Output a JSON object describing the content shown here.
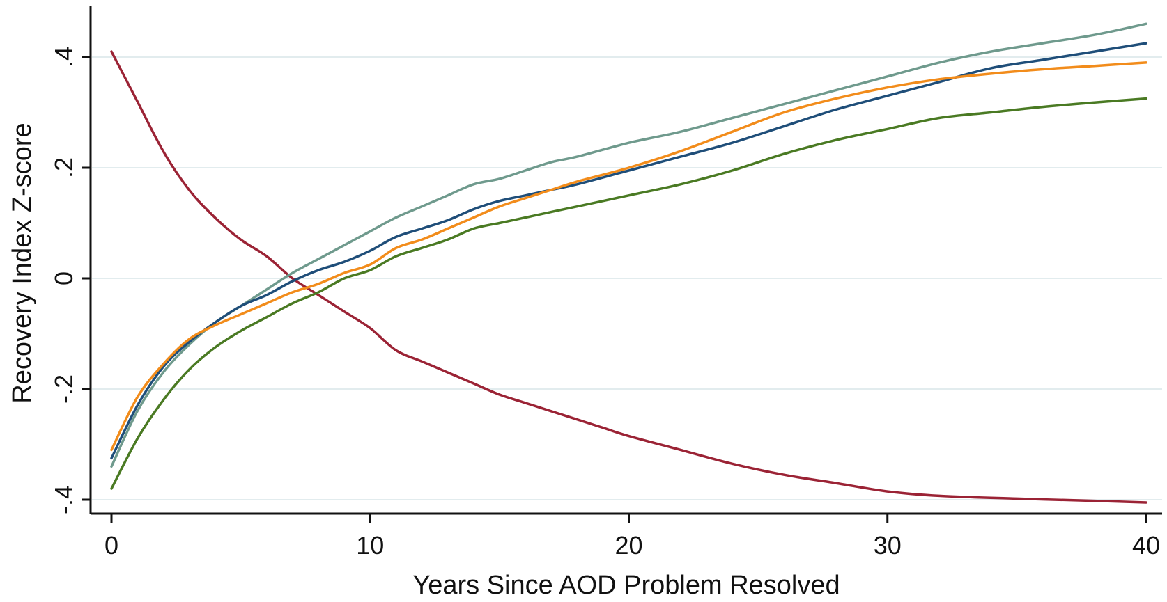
{
  "chart_data": {
    "type": "line",
    "title": "",
    "xlabel": "Years Since AOD Problem Resolved",
    "ylabel": "Recovery Index Z-score",
    "xlim": [
      0,
      40
    ],
    "ylim": [
      -0.4,
      0.4
    ],
    "x_ticks": [
      0,
      10,
      20,
      30,
      40
    ],
    "x_tick_labels": [
      "0",
      "10",
      "20",
      "30",
      "40"
    ],
    "y_ticks": [
      -0.4,
      -0.2,
      0,
      0.2,
      0.4
    ],
    "y_tick_labels": [
      "-.4",
      "-.2",
      "0",
      ".2",
      ".4"
    ],
    "grid": true,
    "legend": "none",
    "series": [
      {
        "color": "#9b2335",
        "x": [
          0,
          1,
          2,
          3,
          4,
          5,
          6,
          7,
          8,
          9,
          10,
          11,
          12,
          13,
          14,
          15,
          16,
          17,
          18,
          19,
          20,
          22,
          24,
          26,
          28,
          30,
          32,
          35,
          38,
          40
        ],
        "y": [
          0.41,
          0.32,
          0.23,
          0.16,
          0.11,
          0.07,
          0.04,
          0.0,
          -0.03,
          -0.06,
          -0.09,
          -0.13,
          -0.15,
          -0.17,
          -0.19,
          -0.21,
          -0.225,
          -0.24,
          -0.255,
          -0.27,
          -0.285,
          -0.31,
          -0.335,
          -0.355,
          -0.37,
          -0.385,
          -0.393,
          -0.398,
          -0.402,
          -0.405
        ]
      },
      {
        "color": "#6f9a8d",
        "x": [
          0,
          1,
          2,
          3,
          4,
          5,
          6,
          7,
          8,
          9,
          10,
          11,
          12,
          13,
          14,
          15,
          16,
          17,
          18,
          20,
          22,
          24,
          26,
          28,
          30,
          32,
          34,
          36,
          38,
          40
        ],
        "y": [
          -0.34,
          -0.24,
          -0.17,
          -0.12,
          -0.08,
          -0.05,
          -0.02,
          0.01,
          0.035,
          0.06,
          0.085,
          0.11,
          0.13,
          0.15,
          0.17,
          0.18,
          0.195,
          0.21,
          0.22,
          0.245,
          0.265,
          0.29,
          0.315,
          0.34,
          0.365,
          0.39,
          0.41,
          0.425,
          0.44,
          0.46
        ]
      },
      {
        "color": "#1f4e79",
        "x": [
          0,
          1,
          2,
          3,
          4,
          5,
          6,
          7,
          8,
          9,
          10,
          11,
          12,
          13,
          14,
          15,
          16,
          17,
          18,
          20,
          22,
          24,
          26,
          28,
          30,
          32,
          34,
          36,
          38,
          40
        ],
        "y": [
          -0.325,
          -0.23,
          -0.16,
          -0.115,
          -0.08,
          -0.05,
          -0.03,
          -0.005,
          0.015,
          0.03,
          0.05,
          0.075,
          0.09,
          0.105,
          0.125,
          0.14,
          0.15,
          0.16,
          0.17,
          0.195,
          0.22,
          0.245,
          0.275,
          0.305,
          0.33,
          0.355,
          0.38,
          0.395,
          0.41,
          0.425
        ]
      },
      {
        "color": "#f28c1b",
        "x": [
          0,
          1,
          2,
          3,
          4,
          5,
          6,
          7,
          8,
          9,
          10,
          11,
          12,
          13,
          14,
          15,
          16,
          17,
          18,
          20,
          22,
          24,
          26,
          28,
          30,
          32,
          34,
          36,
          38,
          40
        ],
        "y": [
          -0.31,
          -0.215,
          -0.155,
          -0.11,
          -0.085,
          -0.065,
          -0.045,
          -0.025,
          -0.01,
          0.01,
          0.025,
          0.055,
          0.07,
          0.09,
          0.11,
          0.13,
          0.145,
          0.16,
          0.175,
          0.2,
          0.23,
          0.265,
          0.3,
          0.325,
          0.345,
          0.36,
          0.37,
          0.378,
          0.384,
          0.39
        ]
      },
      {
        "color": "#4a7a23",
        "x": [
          0,
          1,
          2,
          3,
          4,
          5,
          6,
          7,
          8,
          9,
          10,
          11,
          12,
          13,
          14,
          15,
          16,
          17,
          18,
          20,
          22,
          24,
          26,
          28,
          30,
          32,
          34,
          36,
          38,
          40
        ],
        "y": [
          -0.38,
          -0.29,
          -0.22,
          -0.165,
          -0.125,
          -0.095,
          -0.07,
          -0.045,
          -0.025,
          0.0,
          0.015,
          0.04,
          0.055,
          0.07,
          0.09,
          0.1,
          0.11,
          0.12,
          0.13,
          0.15,
          0.17,
          0.195,
          0.225,
          0.25,
          0.27,
          0.29,
          0.3,
          0.31,
          0.318,
          0.325
        ]
      }
    ]
  }
}
